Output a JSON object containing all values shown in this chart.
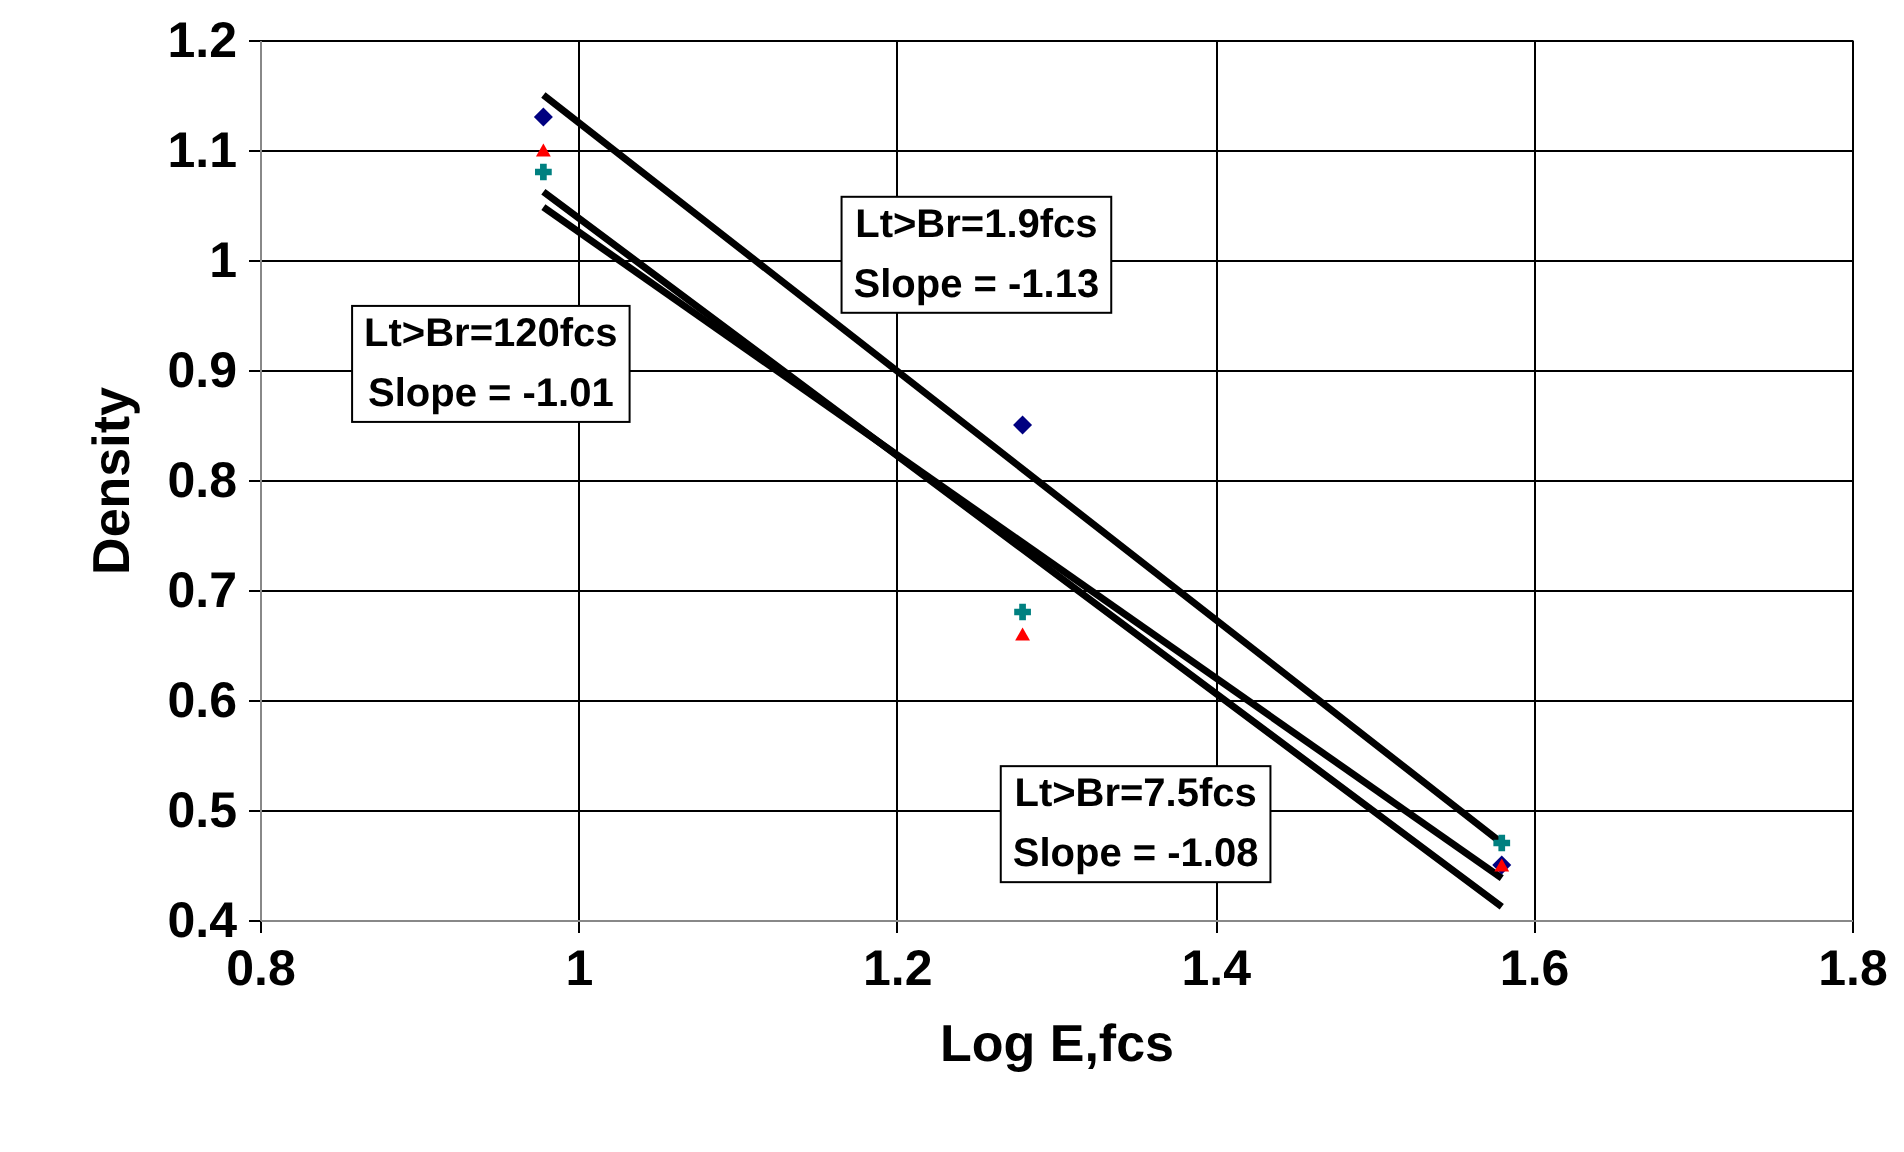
{
  "chart_data": {
    "type": "scatter",
    "xlabel": "Log E,fcs",
    "ylabel": "Density",
    "xlim": [
      0.8,
      1.8
    ],
    "xticks": [
      0.8,
      1,
      1.2,
      1.4,
      1.6,
      1.8
    ],
    "ylim": [
      0.4,
      1.2
    ],
    "yticks": [
      0.4,
      0.5,
      0.6,
      0.7,
      0.8,
      0.9,
      1,
      1.1,
      1.2
    ],
    "grid": true,
    "x": [
      0.978,
      1.279,
      1.58
    ],
    "series": [
      {
        "marker": "diamond",
        "color": "#000080",
        "values": [
          1.13,
          0.85,
          0.45
        ]
      },
      {
        "marker": "triangle",
        "color": "#ff0000",
        "values": [
          1.1,
          0.66,
          0.45
        ]
      },
      {
        "marker": "cross",
        "color": "#008080",
        "values": [
          1.08,
          0.68,
          0.47
        ]
      },
      {
        "type": "line",
        "marker": "none",
        "color": "#000000",
        "values": [
          1.15,
          0.81,
          0.47
        ]
      },
      {
        "type": "line",
        "marker": "none",
        "color": "#000000",
        "values": [
          1.062,
          0.737,
          0.412
        ]
      },
      {
        "type": "line",
        "marker": "none",
        "color": "#000000",
        "values": [
          1.048,
          0.743,
          0.438
        ]
      }
    ],
    "annotations": [
      "Lt>Br=1.9fcs\nSlope = -1.13",
      "Lt>Br=120fcs\nSlope = -1.01",
      "Lt>Br=7.5fcs\nSlope = -1.08"
    ]
  }
}
